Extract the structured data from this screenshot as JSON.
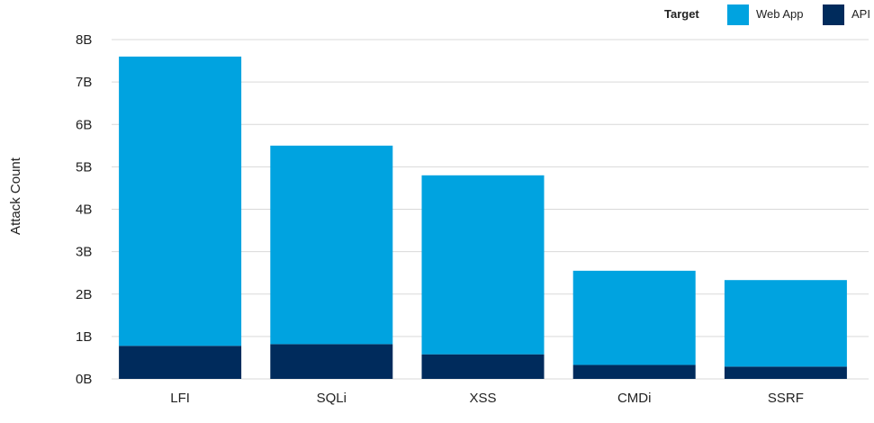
{
  "chart_data": {
    "type": "bar",
    "stacked": true,
    "categories": [
      "LFI",
      "SQLi",
      "XSS",
      "CMDi",
      "SSRF"
    ],
    "series": [
      {
        "name": "API",
        "color": "#002b5c",
        "values": [
          0.78,
          0.82,
          0.58,
          0.33,
          0.29
        ]
      },
      {
        "name": "Web App",
        "color": "#00a3e0",
        "values": [
          6.82,
          4.68,
          4.22,
          2.22,
          2.04
        ]
      }
    ],
    "ylabel": "Attack Count",
    "ylim": [
      0,
      8
    ],
    "yticks": [
      0,
      1,
      2,
      3,
      4,
      5,
      6,
      7,
      8
    ],
    "ytick_labels": [
      "0B",
      "1B",
      "2B",
      "3B",
      "4B",
      "5B",
      "6B",
      "7B",
      "8B"
    ],
    "grid": true,
    "legend": {
      "title": "Target",
      "placement": "top-right",
      "order": [
        "Web App",
        "API"
      ]
    }
  }
}
